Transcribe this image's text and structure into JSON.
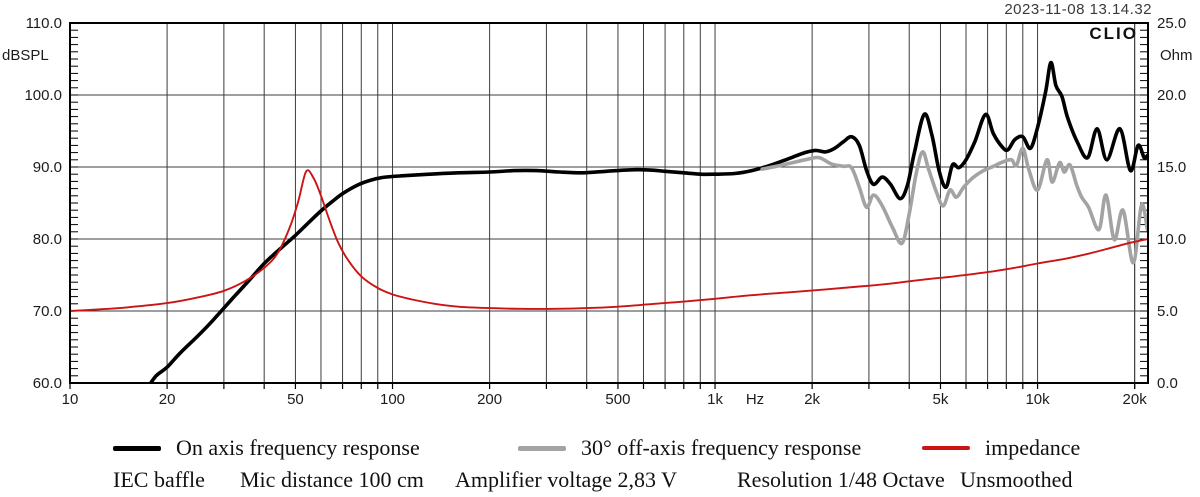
{
  "header": {
    "datetime": "2023-11-08 13.14.32",
    "logo": "CLIO"
  },
  "chart_data": {
    "type": "line",
    "title": "",
    "x_axis": {
      "scale": "log",
      "min": 10,
      "max": 22000,
      "unit": "Hz",
      "unit_label": {
        "f": 1330,
        "label": "Hz"
      },
      "ticks": [
        {
          "f": 10,
          "label": "10"
        },
        {
          "f": 20,
          "label": "20"
        },
        {
          "f": 50,
          "label": "50"
        },
        {
          "f": 100,
          "label": "100"
        },
        {
          "f": 200,
          "label": "200"
        },
        {
          "f": 500,
          "label": "500"
        },
        {
          "f": 1000,
          "label": "1k"
        },
        {
          "f": 2000,
          "label": "2k"
        },
        {
          "f": 5000,
          "label": "5k"
        },
        {
          "f": 10000,
          "label": "10k"
        },
        {
          "f": 20000,
          "label": "20k"
        }
      ]
    },
    "y_left": {
      "label": "dBSPL",
      "min": 60,
      "max": 110,
      "minor_step": 1,
      "ticks": [
        {
          "v": 110,
          "label": "110.0"
        },
        {
          "v": 100,
          "label": "100.0"
        },
        {
          "v": 90,
          "label": "90.0"
        },
        {
          "v": 80,
          "label": "80.0"
        },
        {
          "v": 70,
          "label": "70.0"
        },
        {
          "v": 60,
          "label": "60.0"
        }
      ]
    },
    "y_right": {
      "label": "Ohm",
      "min": 0,
      "max": 25,
      "minor_step": 0.5,
      "ticks": [
        {
          "v": 25,
          "label": "25.0"
        },
        {
          "v": 20,
          "label": "20.0"
        },
        {
          "v": 15,
          "label": "15.0"
        },
        {
          "v": 10,
          "label": "10.0"
        },
        {
          "v": 5,
          "label": "5.0"
        },
        {
          "v": 0,
          "label": "0.0"
        }
      ]
    },
    "grid": true,
    "legend_position": "bottom",
    "series": [
      {
        "name": "On axis frequency response",
        "axis": "left",
        "color": "#000000",
        "width": 3.6,
        "points": [
          [
            17.5,
            59.5
          ],
          [
            18.5,
            61.0
          ],
          [
            20,
            62.2
          ],
          [
            22,
            64.2
          ],
          [
            25,
            66.6
          ],
          [
            28,
            68.9
          ],
          [
            32,
            71.8
          ],
          [
            36,
            74.3
          ],
          [
            40,
            76.6
          ],
          [
            45,
            78.7
          ],
          [
            50,
            80.5
          ],
          [
            55,
            82.3
          ],
          [
            60,
            83.9
          ],
          [
            65,
            85.2
          ],
          [
            70,
            86.3
          ],
          [
            78,
            87.5
          ],
          [
            86,
            88.2
          ],
          [
            95,
            88.6
          ],
          [
            110,
            88.8
          ],
          [
            130,
            89.0
          ],
          [
            160,
            89.2
          ],
          [
            200,
            89.3
          ],
          [
            240,
            89.5
          ],
          [
            280,
            89.5
          ],
          [
            330,
            89.3
          ],
          [
            390,
            89.2
          ],
          [
            460,
            89.4
          ],
          [
            540,
            89.6
          ],
          [
            620,
            89.6
          ],
          [
            700,
            89.4
          ],
          [
            800,
            89.2
          ],
          [
            900,
            89.0
          ],
          [
            1000,
            89.0
          ],
          [
            1150,
            89.1
          ],
          [
            1300,
            89.5
          ],
          [
            1500,
            90.3
          ],
          [
            1700,
            91.2
          ],
          [
            1900,
            92.0
          ],
          [
            2050,
            92.3
          ],
          [
            2200,
            92.1
          ],
          [
            2350,
            92.6
          ],
          [
            2500,
            93.5
          ],
          [
            2650,
            94.2
          ],
          [
            2800,
            93.0
          ],
          [
            2950,
            89.5
          ],
          [
            3100,
            87.6
          ],
          [
            3300,
            88.6
          ],
          [
            3500,
            87.6
          ],
          [
            3750,
            85.6
          ],
          [
            3950,
            87.5
          ],
          [
            4150,
            92.0
          ],
          [
            4450,
            97.3
          ],
          [
            4700,
            94.5
          ],
          [
            4950,
            89.5
          ],
          [
            5200,
            87.2
          ],
          [
            5450,
            90.3
          ],
          [
            5700,
            89.9
          ],
          [
            6000,
            91.0
          ],
          [
            6400,
            93.6
          ],
          [
            6900,
            97.3
          ],
          [
            7300,
            94.6
          ],
          [
            7800,
            92.7
          ],
          [
            8100,
            92.4
          ],
          [
            8500,
            93.8
          ],
          [
            9000,
            94.2
          ],
          [
            9500,
            92.6
          ],
          [
            10000,
            95.5
          ],
          [
            10600,
            100.5
          ],
          [
            11000,
            104.5
          ],
          [
            11400,
            101.3
          ],
          [
            11900,
            99.8
          ],
          [
            12400,
            96.8
          ],
          [
            13300,
            93.4
          ],
          [
            14300,
            91.3
          ],
          [
            15300,
            95.3
          ],
          [
            16400,
            91.0
          ],
          [
            18000,
            95.3
          ],
          [
            19400,
            89.5
          ],
          [
            20500,
            93.0
          ],
          [
            21400,
            91.3
          ],
          [
            21900,
            91.6
          ]
        ]
      },
      {
        "name": "30° off-axis frequency response",
        "axis": "left",
        "color": "#a3a3a3",
        "width": 3.6,
        "points": [
          [
            1400,
            89.7
          ],
          [
            1550,
            90.1
          ],
          [
            1700,
            90.5
          ],
          [
            1900,
            91.0
          ],
          [
            2100,
            91.3
          ],
          [
            2300,
            90.4
          ],
          [
            2500,
            90.1
          ],
          [
            2650,
            89.9
          ],
          [
            2800,
            87.2
          ],
          [
            2950,
            84.4
          ],
          [
            3100,
            86.1
          ],
          [
            3300,
            84.6
          ],
          [
            3550,
            81.6
          ],
          [
            3800,
            79.4
          ],
          [
            4000,
            83.5
          ],
          [
            4200,
            89.0
          ],
          [
            4400,
            92.1
          ],
          [
            4600,
            89.6
          ],
          [
            4850,
            86.6
          ],
          [
            5100,
            84.6
          ],
          [
            5350,
            86.8
          ],
          [
            5600,
            85.8
          ],
          [
            5900,
            87.2
          ],
          [
            6300,
            88.5
          ],
          [
            6800,
            89.5
          ],
          [
            7300,
            90.1
          ],
          [
            7800,
            90.7
          ],
          [
            8300,
            91.0
          ],
          [
            8600,
            90.2
          ],
          [
            9000,
            92.6
          ],
          [
            9400,
            89.6
          ],
          [
            10000,
            86.8
          ],
          [
            10700,
            91.0
          ],
          [
            11100,
            87.9
          ],
          [
            11700,
            90.6
          ],
          [
            12100,
            89.3
          ],
          [
            12600,
            90.3
          ],
          [
            13200,
            87.6
          ],
          [
            13700,
            85.8
          ],
          [
            14400,
            84.4
          ],
          [
            15500,
            81.3
          ],
          [
            16300,
            86.1
          ],
          [
            17300,
            79.9
          ],
          [
            18400,
            84.0
          ],
          [
            19800,
            76.7
          ],
          [
            21000,
            84.7
          ],
          [
            21900,
            81.3
          ]
        ]
      },
      {
        "name": "impedance",
        "axis": "right",
        "color": "#cc1414",
        "width": 1.9,
        "points": [
          [
            10,
            5.0
          ],
          [
            12,
            5.1
          ],
          [
            15,
            5.25
          ],
          [
            20,
            5.55
          ],
          [
            25,
            5.95
          ],
          [
            30,
            6.4
          ],
          [
            35,
            7.1
          ],
          [
            40,
            8.0
          ],
          [
            44,
            9.0
          ],
          [
            48,
            10.8
          ],
          [
            51,
            12.6
          ],
          [
            54,
            14.7
          ],
          [
            57,
            14.2
          ],
          [
            60,
            13.0
          ],
          [
            64,
            11.2
          ],
          [
            68,
            9.7
          ],
          [
            73,
            8.5
          ],
          [
            80,
            7.4
          ],
          [
            90,
            6.6
          ],
          [
            100,
            6.15
          ],
          [
            115,
            5.8
          ],
          [
            135,
            5.5
          ],
          [
            160,
            5.3
          ],
          [
            200,
            5.2
          ],
          [
            250,
            5.15
          ],
          [
            320,
            5.15
          ],
          [
            400,
            5.2
          ],
          [
            500,
            5.3
          ],
          [
            650,
            5.5
          ],
          [
            800,
            5.65
          ],
          [
            1000,
            5.85
          ],
          [
            1300,
            6.1
          ],
          [
            1700,
            6.3
          ],
          [
            2200,
            6.5
          ],
          [
            2800,
            6.7
          ],
          [
            3500,
            6.9
          ],
          [
            4500,
            7.2
          ],
          [
            5500,
            7.4
          ],
          [
            7000,
            7.7
          ],
          [
            8500,
            8.0
          ],
          [
            10000,
            8.3
          ],
          [
            12000,
            8.6
          ],
          [
            14500,
            9.0
          ],
          [
            17000,
            9.4
          ],
          [
            19500,
            9.75
          ],
          [
            22000,
            10.0
          ]
        ]
      }
    ]
  },
  "legend": [
    {
      "label": "On axis frequency response",
      "color": "#000000",
      "thickness": 5
    },
    {
      "label": "30° off-axis frequency response",
      "color": "#a3a3a3",
      "thickness": 5
    },
    {
      "label": "impedance",
      "color": "#cc1414",
      "thickness": 4
    }
  ],
  "footer": {
    "items": [
      "IEC baffle",
      "Mic distance 100 cm",
      "Amplifier voltage 2,83 V",
      "Resolution 1/48 Octave",
      "Unsmoothed"
    ]
  }
}
